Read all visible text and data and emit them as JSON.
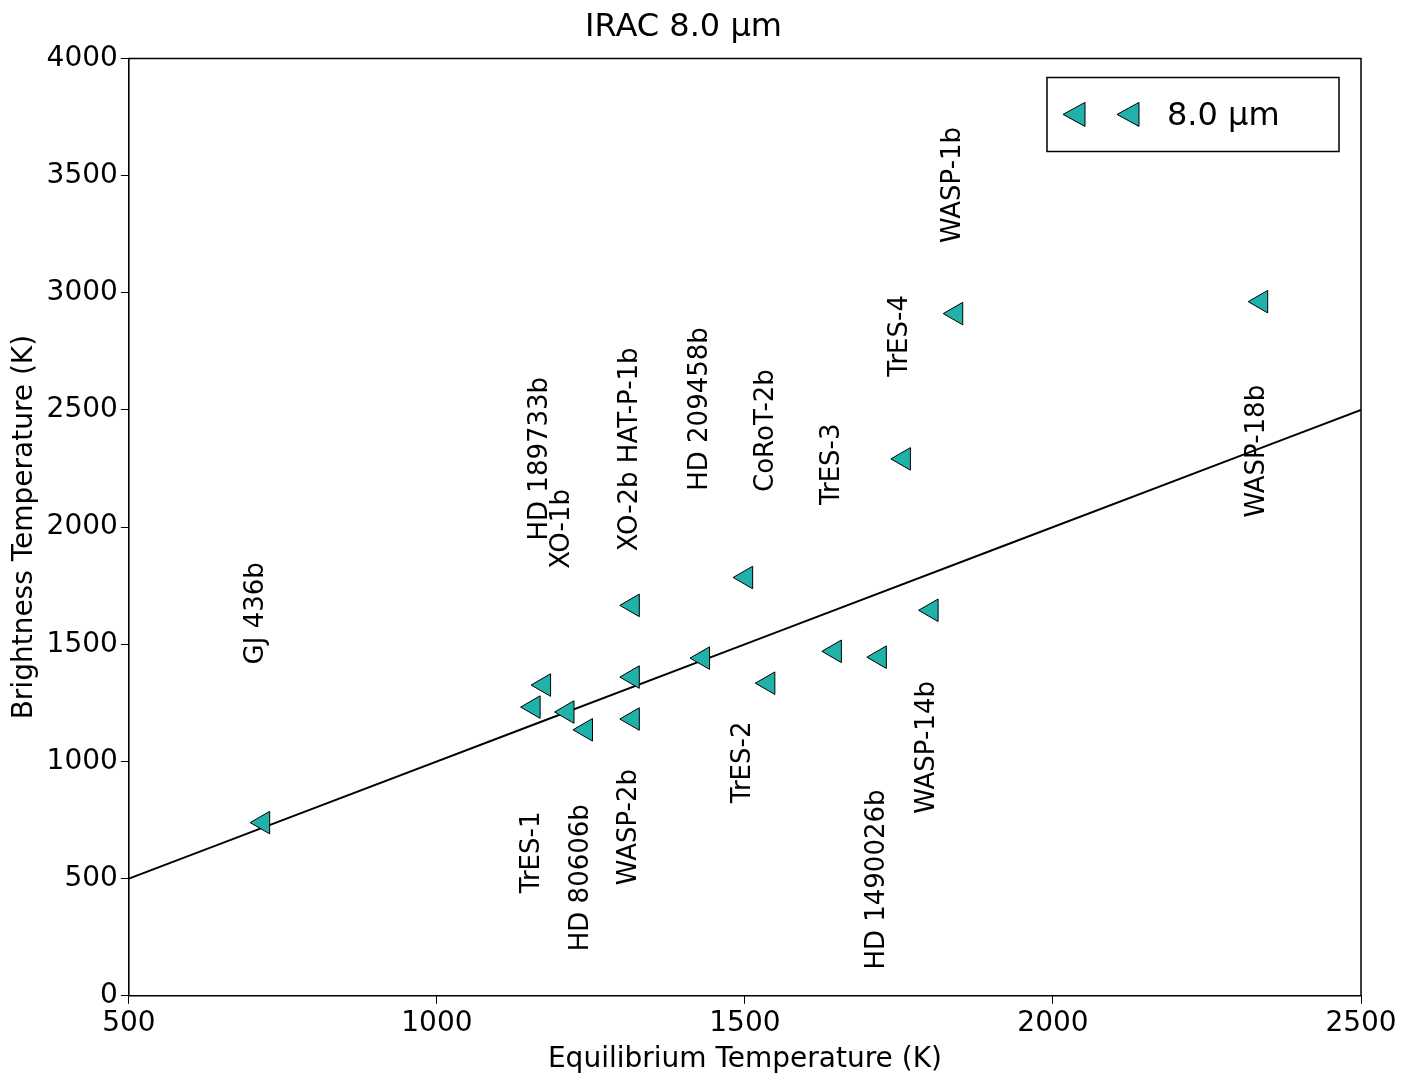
{
  "chart_data": {
    "type": "scatter",
    "title": "IRAC 8.0 μm",
    "xlabel": "Equilibrium Temperature (K)",
    "ylabel": "Brightness Temperature (K)",
    "xlim": [
      500,
      2500
    ],
    "xticks": [
      500,
      1000,
      1500,
      2000,
      2500
    ],
    "ylim": [
      0,
      4000
    ],
    "yticks": [
      0,
      500,
      1000,
      1500,
      2000,
      2500,
      3000,
      3500,
      4000
    ],
    "grid": false,
    "legend": "top right",
    "marker": "triangle",
    "series": [
      {
        "name": "8.0 μm",
        "color": "#20b2aa",
        "x": [
          718,
          1157,
          1174,
          1212,
          1242,
          1318,
          1318,
          1318,
          1432,
          1502,
          1538,
          1646,
          1719,
          1758,
          1803,
          1843,
          2338
        ],
        "values": [
          739,
          1232,
          1326,
          1211,
          1135,
          1181,
          1666,
          1360,
          1441,
          1785,
          1334,
          1470,
          1445,
          2291,
          1645,
          2911,
          2962
        ]
      },
      {
        "type": "line",
        "color": "#000000",
        "line_style": "solid",
        "marker": "none",
        "x": [
          500,
          2500
        ],
        "values": [
          500,
          2500
        ]
      }
    ],
    "annotations": [
      "GJ 436b",
      "HD 189733b",
      "XO-1b",
      "XO-2b HAT-P-1b",
      "HD 209458b",
      "CoRoT-2b",
      "TrES-3",
      "TrES-4",
      "WASP-1b",
      "WASP-18b",
      "TrES-1",
      "HD 80606b",
      "WASP-2b",
      "TrES-2",
      "HD 1490026b",
      "WASP-14b"
    ]
  }
}
